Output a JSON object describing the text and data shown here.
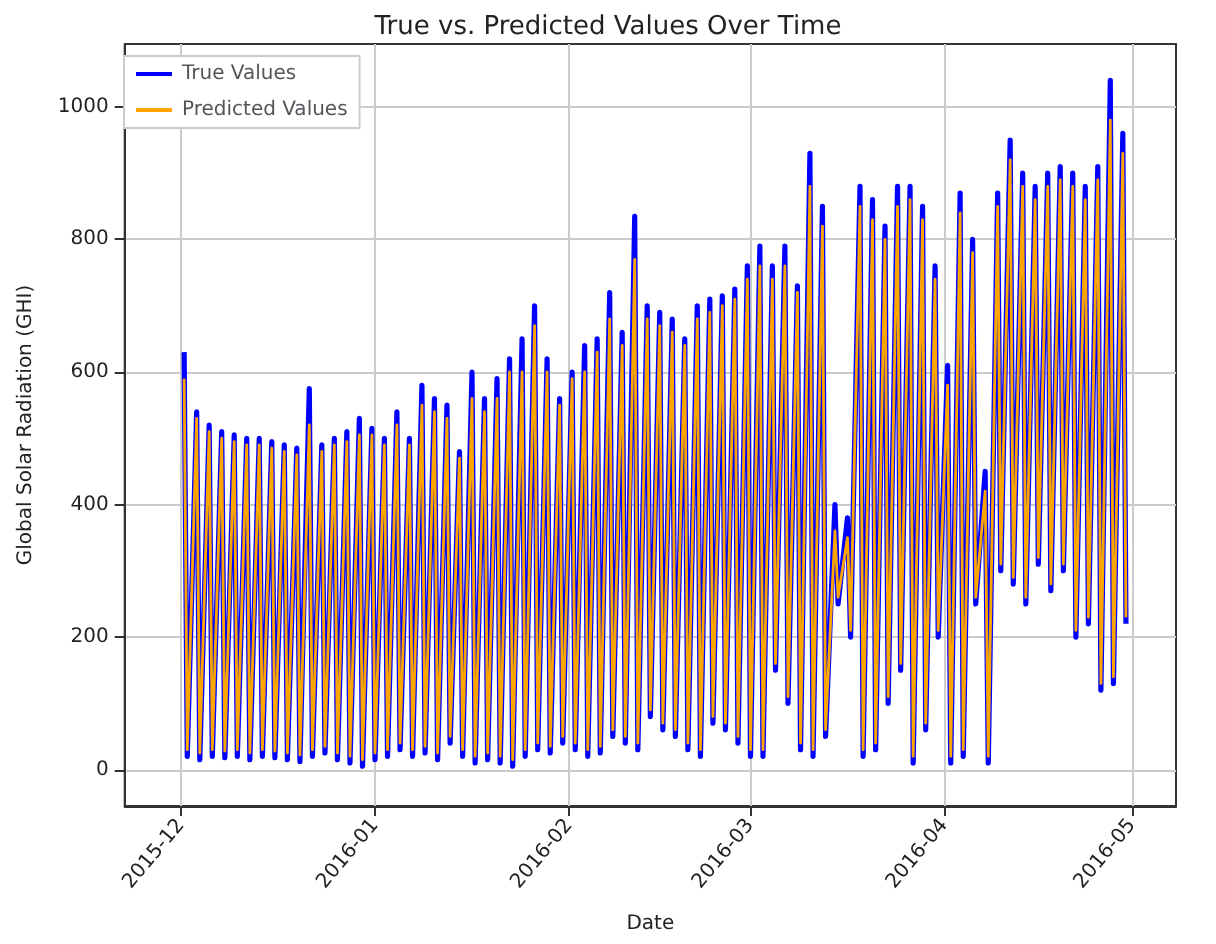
{
  "chart_data": {
    "type": "line",
    "title": "True vs. Predicted Values Over Time",
    "xlabel": "Date",
    "ylabel": "Global Solar Radiation (GHI)",
    "x": [
      "2015-12-01T12:00",
      "2015-12-02T00:00",
      "2015-12-03T12:00",
      "2015-12-04T00:00",
      "2015-12-05T12:00",
      "2015-12-06T00:00",
      "2015-12-07T12:00",
      "2015-12-08T00:00",
      "2015-12-09T12:00",
      "2015-12-10T00:00",
      "2015-12-11T12:00",
      "2015-12-12T00:00",
      "2015-12-13T12:00",
      "2015-12-14T00:00",
      "2015-12-15T12:00",
      "2015-12-16T00:00",
      "2015-12-17T12:00",
      "2015-12-18T00:00",
      "2015-12-19T12:00",
      "2015-12-20T00:00",
      "2015-12-21T12:00",
      "2015-12-22T00:00",
      "2015-12-23T12:00",
      "2015-12-24T00:00",
      "2015-12-25T12:00",
      "2015-12-26T00:00",
      "2015-12-27T12:00",
      "2015-12-28T00:00",
      "2015-12-29T12:00",
      "2015-12-30T00:00",
      "2015-12-31T12:00",
      "2016-01-01T00:00",
      "2016-01-02T12:00",
      "2016-01-03T00:00",
      "2016-01-04T12:00",
      "2016-01-05T00:00",
      "2016-01-06T12:00",
      "2016-01-07T00:00",
      "2016-01-08T12:00",
      "2016-01-09T00:00",
      "2016-01-10T12:00",
      "2016-01-11T00:00",
      "2016-01-12T12:00",
      "2016-01-13T00:00",
      "2016-01-14T12:00",
      "2016-01-15T00:00",
      "2016-01-16T12:00",
      "2016-01-17T00:00",
      "2016-01-18T12:00",
      "2016-01-19T00:00",
      "2016-01-20T12:00",
      "2016-01-21T00:00",
      "2016-01-22T12:00",
      "2016-01-23T00:00",
      "2016-01-24T12:00",
      "2016-01-25T00:00",
      "2016-01-26T12:00",
      "2016-01-27T00:00",
      "2016-01-28T12:00",
      "2016-01-29T00:00",
      "2016-01-30T12:00",
      "2016-01-31T00:00",
      "2016-02-01T12:00",
      "2016-02-02T00:00",
      "2016-02-03T12:00",
      "2016-02-04T00:00",
      "2016-02-05T12:00",
      "2016-02-06T00:00",
      "2016-02-07T12:00",
      "2016-02-08T00:00",
      "2016-02-09T12:00",
      "2016-02-10T00:00",
      "2016-02-11T12:00",
      "2016-02-12T00:00",
      "2016-02-13T12:00",
      "2016-02-14T00:00",
      "2016-02-15T12:00",
      "2016-02-16T00:00",
      "2016-02-17T12:00",
      "2016-02-18T00:00",
      "2016-02-19T12:00",
      "2016-02-20T00:00",
      "2016-02-21T12:00",
      "2016-02-22T00:00",
      "2016-02-23T12:00",
      "2016-02-24T00:00",
      "2016-02-25T12:00",
      "2016-02-26T00:00",
      "2016-02-27T12:00",
      "2016-02-28T00:00",
      "2016-02-29T12:00",
      "2016-03-01T00:00",
      "2016-03-02T12:00",
      "2016-03-03T00:00",
      "2016-03-04T12:00",
      "2016-03-05T00:00",
      "2016-03-06T12:00",
      "2016-03-07T00:00",
      "2016-03-08T12:00",
      "2016-03-09T00:00",
      "2016-03-10T12:00",
      "2016-03-11T00:00",
      "2016-03-12T12:00",
      "2016-03-13T00:00",
      "2016-03-14T12:00",
      "2016-03-15T00:00",
      "2016-03-16T12:00",
      "2016-03-17T00:00",
      "2016-03-18T12:00",
      "2016-03-19T00:00",
      "2016-03-20T12:00",
      "2016-03-21T00:00",
      "2016-03-22T12:00",
      "2016-03-23T00:00",
      "2016-03-24T12:00",
      "2016-03-25T00:00",
      "2016-03-26T12:00",
      "2016-03-27T00:00",
      "2016-03-28T12:00",
      "2016-03-29T00:00",
      "2016-03-30T12:00",
      "2016-03-31T00:00",
      "2016-04-01T12:00",
      "2016-04-02T00:00",
      "2016-04-03T12:00",
      "2016-04-04T00:00",
      "2016-04-05T12:00",
      "2016-04-06T00:00",
      "2016-04-07T12:00",
      "2016-04-08T00:00",
      "2016-04-09T12:00",
      "2016-04-10T00:00",
      "2016-04-11T12:00",
      "2016-04-12T00:00",
      "2016-04-13T12:00",
      "2016-04-14T00:00",
      "2016-04-15T12:00",
      "2016-04-16T00:00",
      "2016-04-17T12:00",
      "2016-04-18T00:00",
      "2016-04-19T12:00",
      "2016-04-20T00:00",
      "2016-04-21T12:00",
      "2016-04-22T00:00",
      "2016-04-23T12:00",
      "2016-04-24T00:00",
      "2016-04-25T12:00",
      "2016-04-26T00:00",
      "2016-04-27T12:00",
      "2016-04-28T00:00",
      "2016-04-29T12:00",
      "2016-04-30T00:00"
    ],
    "series": [
      {
        "name": "True Values",
        "color": "#0000ff",
        "values": [
          630,
          20,
          540,
          15,
          520,
          20,
          510,
          18,
          505,
          20,
          500,
          15,
          500,
          20,
          495,
          18,
          490,
          15,
          485,
          12,
          575,
          20,
          490,
          25,
          500,
          15,
          510,
          10,
          530,
          5,
          515,
          15,
          500,
          20,
          540,
          30,
          500,
          20,
          580,
          25,
          560,
          15,
          550,
          40,
          480,
          20,
          600,
          10,
          560,
          15,
          590,
          10,
          620,
          5,
          650,
          20,
          700,
          30,
          620,
          25,
          560,
          40,
          600,
          30,
          640,
          20,
          650,
          25,
          720,
          50,
          660,
          40,
          835,
          30,
          700,
          80,
          690,
          60,
          680,
          50,
          650,
          30,
          700,
          20,
          710,
          70,
          715,
          60,
          725,
          40,
          760,
          20,
          790,
          20,
          760,
          150,
          790,
          100,
          730,
          30,
          930,
          20,
          850,
          50,
          400,
          250,
          380,
          200,
          880,
          20,
          860,
          30,
          820,
          100,
          880,
          150,
          880,
          10,
          850,
          60,
          760,
          200,
          610,
          10,
          870,
          20,
          800,
          250,
          450,
          10,
          870,
          300,
          950,
          280,
          900,
          250,
          880,
          310,
          900,
          270,
          910,
          300,
          900,
          200,
          880,
          220,
          910,
          120,
          1040,
          130,
          960,
          220
        ]
      },
      {
        "name": "Predicted Values",
        "color": "#ffa500",
        "values": [
          590,
          30,
          530,
          25,
          510,
          30,
          500,
          28,
          495,
          30,
          490,
          25,
          490,
          30,
          485,
          28,
          480,
          25,
          475,
          22,
          520,
          30,
          480,
          35,
          490,
          25,
          495,
          20,
          505,
          15,
          505,
          25,
          490,
          30,
          520,
          40,
          490,
          30,
          550,
          35,
          540,
          25,
          530,
          50,
          470,
          30,
          560,
          20,
          540,
          25,
          560,
          20,
          600,
          15,
          600,
          30,
          670,
          40,
          600,
          35,
          550,
          50,
          590,
          40,
          600,
          30,
          630,
          35,
          680,
          60,
          640,
          50,
          770,
          40,
          680,
          90,
          670,
          70,
          660,
          60,
          640,
          40,
          680,
          30,
          690,
          80,
          700,
          70,
          710,
          50,
          740,
          30,
          760,
          30,
          740,
          160,
          760,
          110,
          720,
          40,
          880,
          30,
          820,
          60,
          360,
          260,
          350,
          210,
          850,
          30,
          830,
          40,
          800,
          110,
          850,
          160,
          860,
          20,
          830,
          70,
          740,
          210,
          580,
          20,
          840,
          30,
          780,
          260,
          420,
          20,
          850,
          310,
          920,
          290,
          880,
          260,
          860,
          320,
          880,
          280,
          890,
          310,
          880,
          210,
          860,
          230,
          890,
          130,
          980,
          140,
          930,
          230
        ]
      }
    ],
    "xlim": [
      "2015-11-22",
      "2016-05-08"
    ],
    "xticks": [
      {
        "value": "2015-12-01",
        "label": "2015-12"
      },
      {
        "value": "2016-01-01",
        "label": "2016-01"
      },
      {
        "value": "2016-02-01",
        "label": "2016-02"
      },
      {
        "value": "2016-03-01",
        "label": "2016-03"
      },
      {
        "value": "2016-04-01",
        "label": "2016-04"
      },
      {
        "value": "2016-05-01",
        "label": "2016-05"
      }
    ],
    "ylim": [
      -55,
      1095
    ],
    "yticks": [
      0,
      200,
      400,
      600,
      800,
      1000
    ],
    "grid": true,
    "legend": "top left",
    "marker": "none",
    "line_style": "solid"
  }
}
